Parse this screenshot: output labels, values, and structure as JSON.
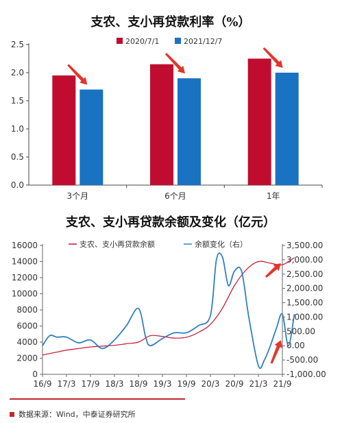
{
  "chart_data": [
    {
      "type": "bar",
      "title": "支农、支小再贷款利率（%）",
      "categories": [
        "3个月",
        "6个月",
        "1年"
      ],
      "series": [
        {
          "name": "2020/7/1",
          "values": [
            1.95,
            2.15,
            2.25
          ],
          "color": "#c00d2f"
        },
        {
          "name": "2021/12/7",
          "values": [
            1.7,
            1.9,
            2.0
          ],
          "color": "#1a72c2"
        }
      ],
      "yticks": [
        "0.0",
        "0.5",
        "1.0",
        "1.5",
        "2.0",
        "2.5"
      ],
      "ylim": [
        0,
        2.5
      ],
      "grid": false,
      "legend": "top",
      "annotations": "red arrows pointing down to each 2021/12/7 bar",
      "arrow_color": "#e3352b"
    },
    {
      "type": "line",
      "title": "支农、支小再贷款余额及变化（亿元）",
      "xticks": [
        "16/9",
        "17/3",
        "17/9",
        "18/3",
        "18/9",
        "19/3",
        "19/9",
        "20/3",
        "20/9",
        "21/3",
        "21/9"
      ],
      "yticks_left": [
        "0",
        "2000",
        "4000",
        "6000",
        "8000",
        "10000",
        "12000",
        "14000",
        "16000"
      ],
      "yticks_right": [
        "-1,000.00",
        "-500.00",
        "0.00",
        "500.00",
        "1,000.00",
        "1,500.00",
        "2,000.00",
        "2,500.00",
        "3,000.00",
        "3,500.00"
      ],
      "ylim_left": [
        0,
        16000
      ],
      "ylim_right": [
        -1000,
        3500
      ],
      "legend": "top",
      "series": [
        {
          "name": "支农、支小再贷款余额",
          "axis": "left",
          "color": "#c8102e",
          "x": [
            0,
            0.5,
            1,
            1.5,
            2,
            2.5,
            3,
            3.5,
            4,
            4.5,
            5,
            5.5,
            6,
            6.5,
            7,
            7.5,
            8,
            8.5,
            9,
            9.5,
            10,
            10.5
          ],
          "values": [
            2400,
            2700,
            3000,
            3200,
            3400,
            3500,
            3600,
            3800,
            4000,
            4800,
            4700,
            4500,
            4600,
            5200,
            6200,
            8200,
            11000,
            13000,
            14000,
            13800,
            13600,
            14500
          ]
        },
        {
          "name": "余额变化（右）",
          "axis": "right",
          "color": "#2f7fc1",
          "x": [
            0,
            0.3,
            0.6,
            1,
            1.5,
            2,
            2.5,
            3,
            3.5,
            4,
            4.3,
            4.5,
            5,
            5.5,
            6,
            6.5,
            7,
            7.25,
            7.5,
            7.75,
            8,
            8.3,
            8.6,
            9,
            9.25,
            9.5,
            9.75,
            10,
            10.25,
            10.5
          ],
          "values": [
            0,
            350,
            300,
            300,
            100,
            200,
            -100,
            200,
            700,
            1300,
            300,
            0,
            250,
            450,
            450,
            700,
            1050,
            3000,
            3100,
            2100,
            2600,
            2600,
            1000,
            -700,
            -500,
            0,
            600,
            1100,
            0,
            1100
          ]
        }
      ],
      "annotations": "red arrows near the right end of both series",
      "arrow_color": "#e3352b"
    }
  ],
  "source": {
    "text": "数据来源：Wind，中泰证券研究所",
    "accent_color": "#c0272d"
  }
}
